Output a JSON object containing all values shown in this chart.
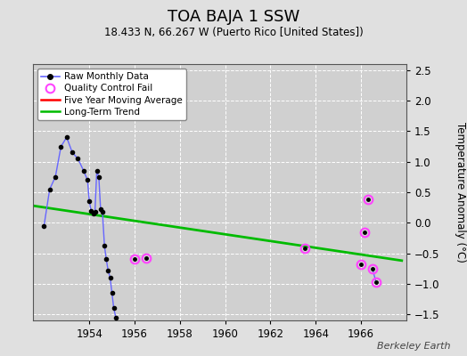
{
  "title": "TOA BAJA 1 SSW",
  "subtitle": "18.433 N, 66.267 W (Puerto Rico [United States])",
  "ylabel": "Temperature Anomaly (°C)",
  "watermark": "Berkeley Earth",
  "xlim": [
    1951.5,
    1968.0
  ],
  "ylim": [
    -1.6,
    2.6
  ],
  "yticks": [
    -1.5,
    -1.0,
    -0.5,
    0.0,
    0.5,
    1.0,
    1.5,
    2.0,
    2.5
  ],
  "xticks": [
    1954,
    1956,
    1958,
    1960,
    1962,
    1964,
    1966
  ],
  "bg_color": "#e0e0e0",
  "plot_bg_color": "#d0d0d0",
  "raw_data": [
    [
      1952.0,
      -0.05
    ],
    [
      1952.25,
      0.55
    ],
    [
      1952.5,
      0.75
    ],
    [
      1952.75,
      1.25
    ],
    [
      1953.0,
      1.4
    ],
    [
      1953.25,
      1.15
    ],
    [
      1953.5,
      1.05
    ],
    [
      1953.75,
      0.85
    ],
    [
      1953.92,
      0.7
    ],
    [
      1954.0,
      0.35
    ],
    [
      1954.08,
      0.2
    ],
    [
      1954.17,
      0.15
    ],
    [
      1954.25,
      0.18
    ],
    [
      1954.33,
      0.85
    ],
    [
      1954.42,
      0.75
    ],
    [
      1954.5,
      0.22
    ],
    [
      1954.58,
      0.18
    ],
    [
      1954.67,
      -0.38
    ],
    [
      1954.75,
      -0.6
    ],
    [
      1954.83,
      -0.78
    ],
    [
      1954.92,
      -0.9
    ],
    [
      1955.0,
      -1.15
    ],
    [
      1955.08,
      -1.4
    ],
    [
      1955.17,
      -1.55
    ]
  ],
  "qc_fail_data": [
    [
      1956.0,
      -0.6
    ],
    [
      1956.5,
      -0.58
    ],
    [
      1963.5,
      -0.42
    ],
    [
      1966.0,
      -0.68
    ],
    [
      1966.17,
      -0.15
    ],
    [
      1966.33,
      0.38
    ],
    [
      1966.5,
      -0.75
    ],
    [
      1966.67,
      -0.98
    ]
  ],
  "trend_x": [
    1951.5,
    1967.8
  ],
  "trend_y": [
    0.28,
    -0.62
  ],
  "raw_line_color": "#6666ff",
  "raw_marker_color": "#000000",
  "qc_color": "#ff44ff",
  "trend_color": "#00bb00",
  "mavg_color": "#ff0000"
}
